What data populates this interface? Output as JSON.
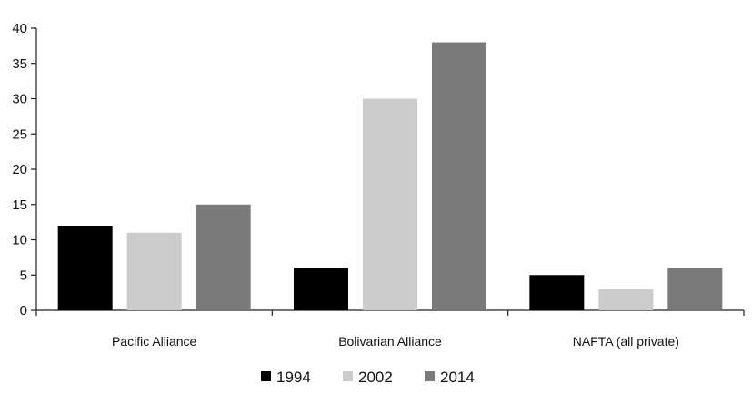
{
  "chart_data": {
    "type": "bar",
    "categories": [
      "Pacific Alliance",
      "Bolivarian Alliance",
      "NAFTA (all private)"
    ],
    "series": [
      {
        "name": "1994",
        "values": [
          12,
          6,
          5
        ],
        "color": "#000000"
      },
      {
        "name": "2002",
        "values": [
          11,
          30,
          3
        ],
        "color": "#cccccc"
      },
      {
        "name": "2014",
        "values": [
          15,
          38,
          6
        ],
        "color": "#7a7a7a"
      }
    ],
    "yticks": [
      "0",
      "5",
      "10",
      "15",
      "20",
      "25",
      "30",
      "35",
      "40"
    ],
    "ylim": [
      0,
      40
    ],
    "grid": false,
    "legend_position": "bottom"
  }
}
